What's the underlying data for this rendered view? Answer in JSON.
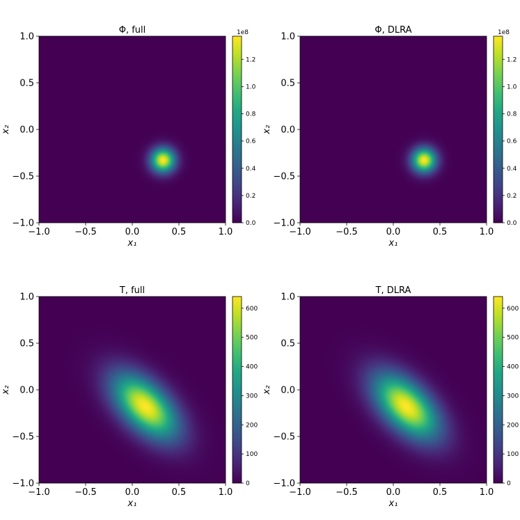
{
  "chart_data": [
    {
      "type": "heatmap",
      "title": "Φ, full",
      "xlabel": "x₁",
      "ylabel": "x₂",
      "xlim": [
        -1.0,
        1.0
      ],
      "ylim": [
        -1.0,
        1.0
      ],
      "xticks": [
        "−1.0",
        "−0.5",
        "0.0",
        "0.5",
        "1.0"
      ],
      "yticks": [
        "−1.0",
        "−0.5",
        "0.0",
        "0.5",
        "1.0"
      ],
      "colormap": "viridis",
      "colorbar": {
        "min": 0,
        "max": 137000000,
        "ticks": [
          0,
          20000000,
          40000000,
          60000000,
          80000000,
          100000000,
          120000000
        ],
        "tick_labels": [
          "0.0",
          "0.2",
          "0.4",
          "0.6",
          "0.8",
          "1.0",
          "1.2"
        ],
        "offset_text": "1e8"
      },
      "field": {
        "shape": "gaussian",
        "peak": 137000000,
        "center": [
          0.33,
          -0.33
        ],
        "sigma": [
          0.09,
          0.09
        ],
        "rho": 0
      }
    },
    {
      "type": "heatmap",
      "title": "Φ, DLRA",
      "xlabel": "x₁",
      "ylabel": "x₂",
      "xlim": [
        -1.0,
        1.0
      ],
      "ylim": [
        -1.0,
        1.0
      ],
      "xticks": [
        "−1.0",
        "−0.5",
        "0.0",
        "0.5",
        "1.0"
      ],
      "yticks": [
        "−1.0",
        "−0.5",
        "0.0",
        "0.5",
        "1.0"
      ],
      "colormap": "viridis",
      "colorbar": {
        "min": 0,
        "max": 137000000,
        "ticks": [
          0,
          20000000,
          40000000,
          60000000,
          80000000,
          100000000,
          120000000
        ],
        "tick_labels": [
          "0.0",
          "0.2",
          "0.4",
          "0.6",
          "0.8",
          "1.0",
          "1.2"
        ],
        "offset_text": "1e8"
      },
      "field": {
        "shape": "gaussian",
        "peak": 137000000,
        "center": [
          0.33,
          -0.33
        ],
        "sigma": [
          0.09,
          0.09
        ],
        "rho": 0
      }
    },
    {
      "type": "heatmap",
      "title": "T, full",
      "xlabel": "x₁",
      "ylabel": "x₂",
      "xlim": [
        -1.0,
        1.0
      ],
      "ylim": [
        -1.0,
        1.0
      ],
      "xticks": [
        "−1.0",
        "−0.5",
        "0.0",
        "0.5",
        "1.0"
      ],
      "yticks": [
        "−1.0",
        "−0.5",
        "0.0",
        "0.5",
        "1.0"
      ],
      "colormap": "viridis",
      "colorbar": {
        "min": 0,
        "max": 640,
        "ticks": [
          0,
          100,
          200,
          300,
          400,
          500,
          600
        ],
        "tick_labels": [
          "0",
          "100",
          "200",
          "300",
          "400",
          "500",
          "600"
        ],
        "offset_text": ""
      },
      "field": {
        "shape": "gaussian",
        "peak": 640,
        "center": [
          0.14,
          -0.18
        ],
        "sigma": [
          0.24,
          0.24
        ],
        "rho": -0.55
      }
    },
    {
      "type": "heatmap",
      "title": "T, DLRA",
      "xlabel": "x₁",
      "ylabel": "x₂",
      "xlim": [
        -1.0,
        1.0
      ],
      "ylim": [
        -1.0,
        1.0
      ],
      "xticks": [
        "−1.0",
        "−0.5",
        "0.0",
        "0.5",
        "1.0"
      ],
      "yticks": [
        "−1.0",
        "−0.5",
        "0.0",
        "0.5",
        "1.0"
      ],
      "colormap": "viridis",
      "colorbar": {
        "min": 0,
        "max": 640,
        "ticks": [
          0,
          100,
          200,
          300,
          400,
          500,
          600
        ],
        "tick_labels": [
          "0",
          "100",
          "200",
          "300",
          "400",
          "500",
          "600"
        ],
        "offset_text": ""
      },
      "field": {
        "shape": "gaussian",
        "peak": 640,
        "center": [
          0.14,
          -0.18
        ],
        "sigma": [
          0.24,
          0.24
        ],
        "rho": -0.55
      }
    }
  ]
}
